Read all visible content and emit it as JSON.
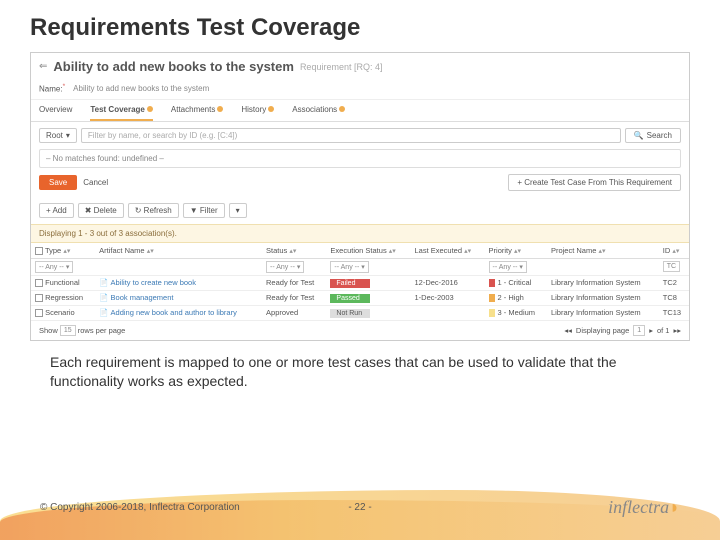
{
  "slide": {
    "title": "Requirements Test Coverage",
    "caption": "Each requirement is mapped to one or more test cases that can be used to validate that the functionality works as expected.",
    "copyright": "© Copyright 2006-2018, Inflectra Corporation",
    "page": "- 22 -",
    "logo_text": "inflectra"
  },
  "req": {
    "title": "Ability to add new books to the system",
    "subtitle": "Requirement [RQ: 4]",
    "name_label": "Name:",
    "name_value": "Ability to add new books to the system"
  },
  "tabs": {
    "t0": "Overview",
    "t1": "Test Coverage",
    "t2": "Attachments",
    "t3": "History",
    "t4": "Associations"
  },
  "filter": {
    "root": "Root",
    "placeholder": "Filter by name, or search by ID (e.g. [C:4])",
    "search": "Search",
    "no_match": "– No matches found: undefined –"
  },
  "actions": {
    "save": "Save",
    "cancel": "Cancel",
    "create": "+  Create Test Case From This Requirement"
  },
  "toolbar": {
    "add": "+ Add",
    "delete": "✖ Delete",
    "refresh": "↻ Refresh",
    "filter": "▼ Filter"
  },
  "display": "Displaying 1 - 3 out of 3 association(s).",
  "columns": {
    "type": "Type",
    "artifact": "Artifact Name",
    "status": "Status",
    "exec": "Execution Status",
    "last": "Last Executed",
    "prio": "Priority",
    "project": "Project Name",
    "id": "ID"
  },
  "any": "-- Any --",
  "rows": {
    "r0": {
      "type": "Functional",
      "artifact": "Ability to create new book",
      "status": "Ready for Test",
      "exec": "Failed",
      "exec_class": "pill-failed",
      "last": "12-Dec-2016",
      "prio": "1 - Critical",
      "prio_class": "prio-critical",
      "project": "Library Information System",
      "id": "TC2"
    },
    "r1": {
      "type": "Regression",
      "artifact": "Book management",
      "status": "Ready for Test",
      "exec": "Passed",
      "exec_class": "pill-passed",
      "last": "1-Dec-2003",
      "prio": "2 - High",
      "prio_class": "prio-high",
      "project": "Library Information System",
      "id": "TC8"
    },
    "r2": {
      "type": "Scenario",
      "artifact": "Adding new book and author to library",
      "status": "Approved",
      "exec": "Not Run",
      "exec_class": "pill-notrun",
      "last": "",
      "prio": "3 - Medium",
      "prio_class": "prio-medium",
      "project": "Library Information System",
      "id": "TC13"
    }
  },
  "footer": {
    "show": "Show",
    "show_val": "15",
    "rows_per": "rows per page",
    "displaying": "Displaying page",
    "page": "1",
    "of": "of 1"
  },
  "colors": {
    "accent": "#f0ad4e",
    "primary_btn": "#e8642c",
    "failed": "#d9534f",
    "passed": "#5cb85c",
    "notrun": "#dddddd"
  }
}
